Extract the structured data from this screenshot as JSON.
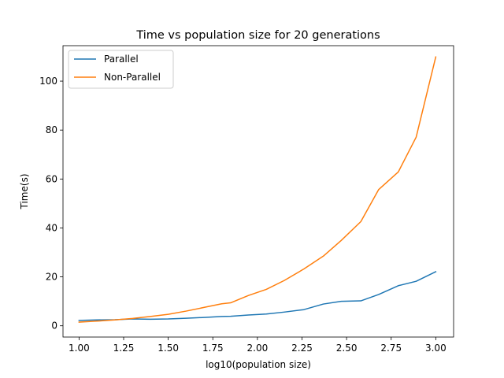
{
  "chart_data": {
    "type": "line",
    "title": "Time vs population size for 20 generations",
    "xlabel": "log10(population size)",
    "ylabel": "Time(s)",
    "xlim": [
      0.91,
      3.1
    ],
    "ylim": [
      -4.6,
      114.5
    ],
    "xticks": [
      1.0,
      1.25,
      1.5,
      1.75,
      2.0,
      2.25,
      2.5,
      2.75,
      3.0
    ],
    "xtick_labels": [
      "1.00",
      "1.25",
      "1.50",
      "1.75",
      "2.00",
      "2.25",
      "2.50",
      "2.75",
      "3.00"
    ],
    "yticks": [
      0,
      20,
      40,
      60,
      80,
      100
    ],
    "ytick_labels": [
      "0",
      "20",
      "40",
      "60",
      "80",
      "100"
    ],
    "grid": false,
    "legend_position": "top-left",
    "x": [
      1.0,
      1.1,
      1.2,
      1.3,
      1.4,
      1.5,
      1.6,
      1.7,
      1.8,
      1.85,
      1.95,
      2.05,
      2.15,
      2.26,
      2.37,
      2.47,
      2.58,
      2.68,
      2.79,
      2.89,
      3.0
    ],
    "series": [
      {
        "name": "Parallel",
        "color": "#1f77b4",
        "values": [
          2.2,
          2.4,
          2.5,
          2.8,
          2.7,
          2.8,
          3.1,
          3.4,
          3.8,
          3.9,
          4.4,
          4.8,
          5.6,
          6.6,
          8.9,
          10.0,
          10.2,
          12.8,
          16.4,
          18.2,
          22.1
        ]
      },
      {
        "name": "Non-Parallel",
        "color": "#ff7f0e",
        "values": [
          1.5,
          1.9,
          2.4,
          3.0,
          3.8,
          4.7,
          6.0,
          7.5,
          9.0,
          9.4,
          12.4,
          14.9,
          18.5,
          23.2,
          28.5,
          34.9,
          42.6,
          55.7,
          62.9,
          77.1,
          109.9
        ]
      }
    ]
  }
}
